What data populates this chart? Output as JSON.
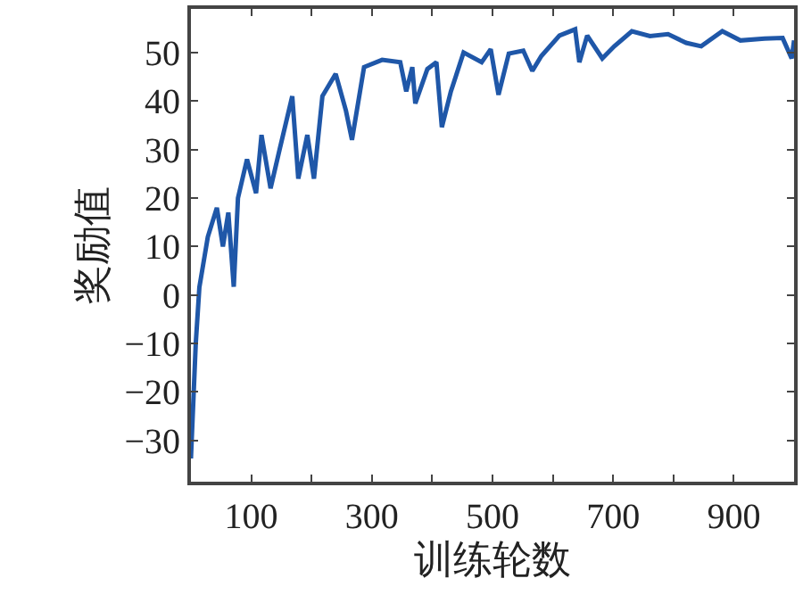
{
  "chart_data": {
    "type": "line",
    "xlabel": "训练轮数",
    "ylabel": "奖励值",
    "xlim": [
      0,
      1000
    ],
    "ylim": [
      -38.5,
      59
    ],
    "xticks": [
      100,
      {
        "value": 200,
        "label": null
      },
      300,
      {
        "value": 400,
        "label": null
      },
      500,
      {
        "value": 600,
        "label": null
      },
      700,
      {
        "value": 800,
        "label": null
      },
      900
    ],
    "yticks": [
      -30,
      -20,
      -10,
      0,
      10,
      20,
      30,
      40,
      50
    ],
    "legend": false,
    "marker": "none",
    "line_style": "solid",
    "x": [
      0,
      8,
      14,
      28,
      43,
      53,
      62,
      71,
      78,
      93,
      108,
      117,
      132,
      147,
      168,
      178,
      193,
      204,
      218,
      240,
      257,
      267,
      287,
      317,
      347,
      357,
      367,
      372,
      392,
      407,
      416,
      431,
      452,
      482,
      497,
      510,
      527,
      551,
      566,
      581,
      611,
      637,
      644,
      657,
      682,
      702,
      731,
      761,
      791,
      821,
      846,
      881,
      911,
      951,
      981,
      996,
      1000
    ],
    "series": [
      {
        "color": "#1f57a8",
        "values": [
          -33.7,
          -10,
          1.6,
          12,
          18,
          10,
          17,
          1.7,
          20,
          28,
          21,
          33,
          22,
          30,
          41,
          24,
          33,
          24,
          41,
          45.6,
          38,
          32,
          47,
          48.5,
          48,
          42,
          47,
          39.5,
          46.6,
          48,
          34.6,
          42,
          50,
          48,
          50.7,
          41.3,
          49.8,
          50.4,
          46.2,
          49.3,
          53.5,
          54.8,
          48,
          53.5,
          48.8,
          51.3,
          54.4,
          53.4,
          53.8,
          52,
          51.3,
          54.4,
          52.5,
          52.9,
          53,
          48.8,
          52.5
        ]
      }
    ]
  }
}
